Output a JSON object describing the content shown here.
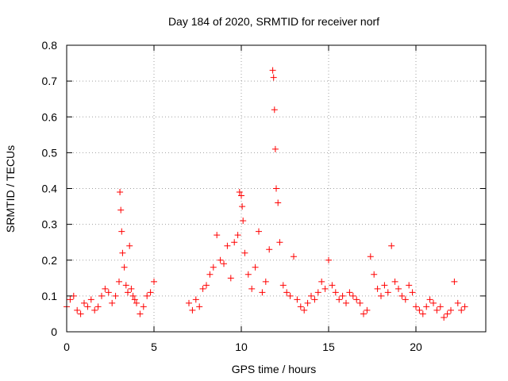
{
  "chart_data": {
    "type": "scatter",
    "title": "Day 184 of 2020, SRMTID for receiver norf",
    "xlabel": "GPS time / hours",
    "ylabel": "SRMTID / TECUs",
    "xlim": [
      0,
      24
    ],
    "ylim": [
      0,
      0.8
    ],
    "xticks": [
      0,
      5,
      10,
      15,
      20
    ],
    "xtick_labels": [
      "0",
      "5",
      "10",
      "15",
      "20"
    ],
    "yticks": [
      0,
      0.1,
      0.2,
      0.3,
      0.4,
      0.5,
      0.6,
      0.7,
      0.8
    ],
    "ytick_labels": [
      "0",
      "0.1",
      "0.2",
      "0.3",
      "0.4",
      "0.5",
      "0.6",
      "0.7",
      "0.8"
    ],
    "grid": true,
    "series_color": "#ff0000",
    "marker": "plus",
    "series": [
      {
        "name": "SRMTID",
        "x": [
          0.0,
          0.2,
          0.4,
          0.6,
          0.8,
          1.0,
          1.2,
          1.4,
          1.6,
          1.8,
          2.0,
          2.2,
          2.4,
          2.6,
          2.8,
          3.0,
          3.05,
          3.1,
          3.15,
          3.2,
          3.3,
          3.4,
          3.5,
          3.6,
          3.7,
          3.8,
          3.9,
          4.0,
          4.2,
          4.4,
          4.6,
          4.8,
          5.0,
          7.0,
          7.2,
          7.4,
          7.6,
          7.8,
          8.0,
          8.2,
          8.4,
          8.6,
          8.8,
          9.0,
          9.2,
          9.4,
          9.6,
          9.8,
          9.9,
          10.0,
          10.05,
          10.1,
          10.2,
          10.4,
          10.6,
          10.8,
          11.0,
          11.2,
          11.4,
          11.6,
          11.8,
          11.85,
          11.9,
          11.95,
          12.0,
          12.1,
          12.2,
          12.4,
          12.6,
          12.8,
          13.0,
          13.2,
          13.4,
          13.6,
          13.8,
          14.0,
          14.2,
          14.4,
          14.6,
          14.8,
          15.0,
          15.2,
          15.4,
          15.6,
          15.8,
          16.0,
          16.2,
          16.4,
          16.6,
          16.8,
          17.0,
          17.2,
          17.4,
          17.6,
          17.8,
          18.0,
          18.2,
          18.4,
          18.6,
          18.8,
          19.0,
          19.2,
          19.4,
          19.6,
          19.8,
          20.0,
          20.2,
          20.4,
          20.6,
          20.8,
          21.0,
          21.2,
          21.4,
          21.6,
          21.8,
          22.0,
          22.2,
          22.4,
          22.6,
          22.8
        ],
        "y": [
          0.07,
          0.09,
          0.1,
          0.06,
          0.05,
          0.08,
          0.07,
          0.09,
          0.06,
          0.07,
          0.1,
          0.12,
          0.11,
          0.08,
          0.1,
          0.14,
          0.39,
          0.34,
          0.28,
          0.22,
          0.18,
          0.13,
          0.11,
          0.24,
          0.12,
          0.1,
          0.09,
          0.08,
          0.05,
          0.07,
          0.1,
          0.11,
          0.14,
          0.08,
          0.06,
          0.09,
          0.07,
          0.12,
          0.13,
          0.16,
          0.18,
          0.27,
          0.2,
          0.19,
          0.24,
          0.15,
          0.25,
          0.27,
          0.39,
          0.38,
          0.35,
          0.31,
          0.22,
          0.16,
          0.12,
          0.18,
          0.28,
          0.11,
          0.14,
          0.23,
          0.73,
          0.71,
          0.62,
          0.51,
          0.4,
          0.36,
          0.25,
          0.13,
          0.11,
          0.1,
          0.21,
          0.09,
          0.07,
          0.06,
          0.08,
          0.1,
          0.09,
          0.11,
          0.14,
          0.12,
          0.2,
          0.13,
          0.11,
          0.09,
          0.1,
          0.08,
          0.11,
          0.1,
          0.09,
          0.08,
          0.05,
          0.06,
          0.21,
          0.16,
          0.12,
          0.1,
          0.13,
          0.11,
          0.24,
          0.14,
          0.12,
          0.1,
          0.09,
          0.13,
          0.11,
          0.07,
          0.06,
          0.05,
          0.07,
          0.09,
          0.08,
          0.06,
          0.07,
          0.04,
          0.05,
          0.06,
          0.14,
          0.08,
          0.06,
          0.07
        ]
      }
    ]
  }
}
